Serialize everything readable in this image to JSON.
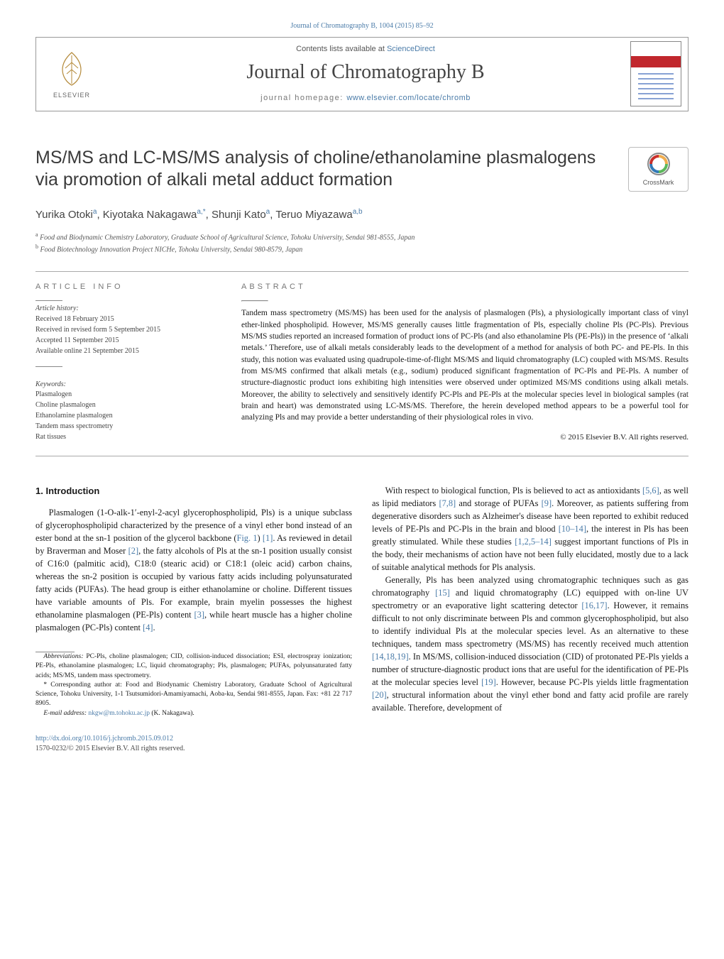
{
  "journal_header": {
    "cite_line": "Journal of Chromatography B, 1004 (2015) 85–92",
    "lists_prefix": "Contents lists available at ",
    "lists_link": "ScienceDirect",
    "journal_name": "Journal of Chromatography B",
    "homepage_prefix": "journal homepage: ",
    "homepage_link": "www.elsevier.com/locate/chromb",
    "elsevier_label": "ELSEVIER"
  },
  "crossmark_label": "CrossMark",
  "title": "MS/MS and LC-MS/MS analysis of choline/ethanolamine plasmalogens via promotion of alkali metal adduct formation",
  "authors_html": "Yurika Otoki<sup>a</sup>, Kiyotaka Nakagawa<sup>a,*</sup>, Shunji Kato<sup>a</sup>, Teruo Miyazawa<sup>a,b</sup>",
  "authors": [
    {
      "name": "Yurika Otoki",
      "aff": "a"
    },
    {
      "name": "Kiyotaka Nakagawa",
      "aff": "a,*"
    },
    {
      "name": "Shunji Kato",
      "aff": "a"
    },
    {
      "name": "Teruo Miyazawa",
      "aff": "a,b"
    }
  ],
  "affiliations": [
    {
      "sup": "a",
      "text": "Food and Biodynamic Chemistry Laboratory, Graduate School of Agricultural Science, Tohoku University, Sendai 981-8555, Japan"
    },
    {
      "sup": "b",
      "text": "Food Biotechnology Innovation Project NICHe, Tohoku University, Sendai 980-8579, Japan"
    }
  ],
  "article_info": {
    "heading": "ARTICLE INFO",
    "history_label": "Article history:",
    "history": [
      "Received 18 February 2015",
      "Received in revised form 5 September 2015",
      "Accepted 11 September 2015",
      "Available online 21 September 2015"
    ],
    "keywords_label": "Keywords:",
    "keywords": [
      "Plasmalogen",
      "Choline plasmalogen",
      "Ethanolamine plasmalogen",
      "Tandem mass spectrometry",
      "Rat tissues"
    ]
  },
  "abstract": {
    "heading": "ABSTRACT",
    "text": "Tandem mass spectrometry (MS/MS) has been used for the analysis of plasmalogen (Pls), a physiologically important class of vinyl ether-linked phospholipid. However, MS/MS generally causes little fragmentation of Pls, especially choline Pls (PC-Pls). Previous MS/MS studies reported an increased formation of product ions of PC-Pls (and also ethanolamine Pls (PE-Pls)) in the presence of ‘alkali metals.’ Therefore, use of alkali metals considerably leads to the development of a method for analysis of both PC- and PE-Pls. In this study, this notion was evaluated using quadrupole-time-of-flight MS/MS and liquid chromatography (LC) coupled with MS/MS. Results from MS/MS confirmed that alkali metals (e.g., sodium) produced significant fragmentation of PC-Pls and PE-Pls. A number of structure-diagnostic product ions exhibiting high intensities were observed under optimized MS/MS conditions using alkali metals. Moreover, the ability to selectively and sensitively identify PC-Pls and PE-Pls at the molecular species level in biological samples (rat brain and heart) was demonstrated using LC-MS/MS. Therefore, the herein developed method appears to be a powerful tool for analyzing Pls and may provide a better understanding of their physiological roles in vivo.",
    "copyright": "© 2015 Elsevier B.V. All rights reserved."
  },
  "sections": {
    "intro_heading": "1.  Introduction",
    "intro_p1_a": "Plasmalogen (1-O-alk-1′-enyl-2-acyl glycerophospholipid, Pls) is a unique subclass of glycerophospholipid characterized by the presence of a vinyl ether bond instead of an ester bond at the sn-1 position of the glycerol backbone (",
    "intro_p1_fig": "Fig. 1",
    "intro_p1_b": ") ",
    "intro_p1_r1": "[1]",
    "intro_p1_c": ". As reviewed in detail by Braverman and Moser ",
    "intro_p1_r2": "[2]",
    "intro_p1_d": ", the fatty alcohols of Pls at the sn-1 position usually consist of C16:0 (palmitic acid), C18:0 (stearic acid) or C18:1 (oleic acid) carbon chains, whereas the sn-2 position is occupied by various fatty acids including polyunsaturated fatty acids (PUFAs). The head group is either ethanolamine or choline. Different tissues have variable amounts of Pls. For example, brain myelin possesses the highest ethanolamine plasmalogen (PE-Pls) content ",
    "intro_p1_r3": "[3]",
    "intro_p1_e": ", while heart muscle has a higher choline plasmalogen (PC-Pls) content ",
    "intro_p1_r4": "[4]",
    "intro_p1_f": ".",
    "intro_p2_a": "With respect to biological function, Pls is believed to act as antioxidants ",
    "intro_p2_r1": "[5,6]",
    "intro_p2_b": ", as well as lipid mediators ",
    "intro_p2_r2": "[7,8]",
    "intro_p2_c": " and storage of PUFAs ",
    "intro_p2_r3": "[9]",
    "intro_p2_d": ". Moreover, as patients suffering from degenerative disorders such as Alzheimer's disease have been reported to exhibit reduced levels of PE-Pls and PC-Pls in the brain and blood ",
    "intro_p2_r4": "[10–14]",
    "intro_p2_e": ", the interest in Pls has been greatly stimulated. While these studies ",
    "intro_p2_r5": "[1,2,5–14]",
    "intro_p2_f": " suggest important functions of Pls in the body, their mechanisms of action have not been fully elucidated, mostly due to a lack of suitable analytical methods for Pls analysis.",
    "intro_p3_a": "Generally, Pls has been analyzed using chromatographic techniques such as gas chromatography ",
    "intro_p3_r1": "[15]",
    "intro_p3_b": " and liquid chromatography (LC) equipped with on-line UV spectrometry or an evaporative light scattering detector ",
    "intro_p3_r2": "[16,17]",
    "intro_p3_c": ". However, it remains difficult to not only discriminate between Pls and common glycerophospholipid, but also to identify individual Pls at the molecular species level. As an alternative to these techniques, tandem mass spectrometry (MS/MS) has recently received much attention ",
    "intro_p3_r3": "[14,18,19]",
    "intro_p3_d": ". In MS/MS, collision-induced dissociation (CID) of protonated PE-Pls yields a number of structure-diagnostic product ions that are useful for the identification of PE-Pls at the molecular species level ",
    "intro_p3_r4": "[19]",
    "intro_p3_e": ". However, because PC-Pls yields little fragmentation ",
    "intro_p3_r5": "[20]",
    "intro_p3_f": ", structural information about the vinyl ether bond and fatty acid profile are rarely available. Therefore, development of"
  },
  "footnotes": {
    "abbrev_label": "Abbreviations:",
    "abbrev_text": " PC-Pls, choline plasmalogen; CID, collision-induced dissociation; ESI, electrospray ionization; PE-Pls, ethanolamine plasmalogen; LC, liquid chromatography; Pls, plasmalogen; PUFAs, polyunsaturated fatty acids; MS/MS, tandem mass spectrometry.",
    "corr_label": "* Corresponding author at:",
    "corr_text": " Food and Biodynamic Chemistry Laboratory, Graduate School of Agricultural Science, Tohoku University, 1-1 Tsutsumidori-Amamiyamachi, Aoba-ku, Sendai 981-8555, Japan. Fax: +81 22 717 8905.",
    "email_label": "E-mail address:",
    "email": " nkgw@m.tohoku.ac.jp",
    "email_tail": " (K. Nakagawa)."
  },
  "footer": {
    "doi": "http://dx.doi.org/10.1016/j.jchromb.2015.09.012",
    "issn_line": "1570-0232/© 2015 Elsevier B.V. All rights reserved."
  },
  "colors": {
    "link": "#4a7ba8",
    "text": "#1a1a1a",
    "rule": "#aaaaaa",
    "cover_red": "#c1272d"
  }
}
